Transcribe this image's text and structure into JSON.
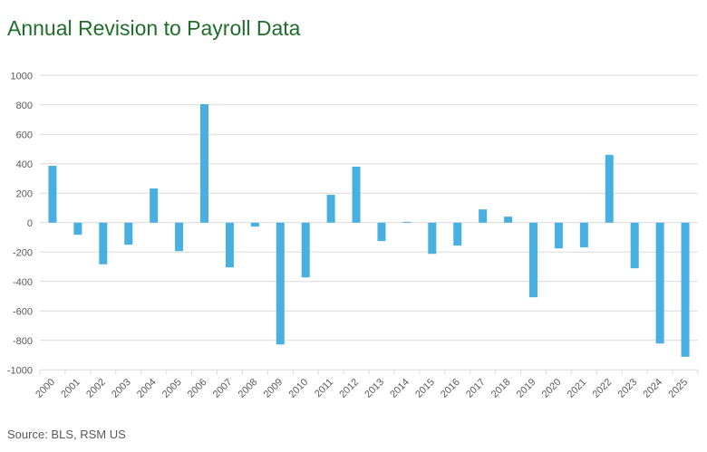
{
  "title": "Annual Revision to Payroll Data",
  "source": "Source: BLS, RSM US",
  "chart_data": {
    "type": "bar",
    "title": "Annual Revision to Payroll Data",
    "xlabel": "",
    "ylabel": "",
    "categories": [
      "2000",
      "2001",
      "2002",
      "2003",
      "2004",
      "2005",
      "2006",
      "2007",
      "2008",
      "2009",
      "2010",
      "2011",
      "2012",
      "2013",
      "2014",
      "2015",
      "2016",
      "2017",
      "2018",
      "2019",
      "2020",
      "2021",
      "2022",
      "2023",
      "2024",
      "2025"
    ],
    "values": [
      386,
      -82,
      -283,
      -150,
      232,
      -193,
      805,
      -304,
      -27,
      -828,
      -372,
      189,
      380,
      -125,
      6,
      -212,
      -156,
      90,
      41,
      -507,
      -175,
      -168,
      460,
      -310,
      -821,
      -911
    ],
    "ylim": [
      -1000,
      1000
    ],
    "yticks": [
      1000,
      800,
      600,
      400,
      200,
      0,
      -200,
      -400,
      -600,
      -800,
      -1000
    ],
    "grid": true,
    "legend": "none",
    "bar_color": "#47b0e0",
    "title_color": "#1f6e2a"
  }
}
